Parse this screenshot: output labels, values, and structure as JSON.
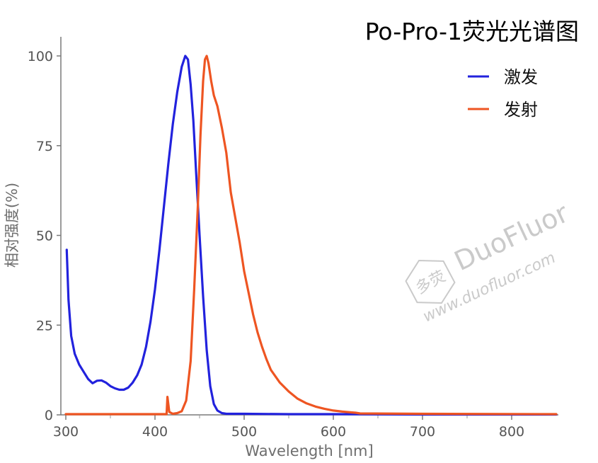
{
  "chart_data": {
    "type": "line",
    "title": "Po-Pro-1荧光光谱图",
    "xlabel": "Wavelength [nm]",
    "ylabel": "相对强度(%)",
    "xlim": [
      300,
      850
    ],
    "ylim": [
      0,
      100
    ],
    "xticks": [
      300,
      400,
      500,
      600,
      700,
      800
    ],
    "yticks": [
      0,
      25,
      50,
      75,
      100
    ],
    "legend_position": "top-right",
    "series": [
      {
        "name": "激发",
        "color": "#2222dd",
        "points": [
          [
            301,
            46
          ],
          [
            303,
            32
          ],
          [
            306,
            22
          ],
          [
            310,
            17
          ],
          [
            315,
            14
          ],
          [
            320,
            12
          ],
          [
            325,
            10
          ],
          [
            330,
            8.8
          ],
          [
            335,
            9.5
          ],
          [
            340,
            9.6
          ],
          [
            345,
            9.0
          ],
          [
            350,
            8.0
          ],
          [
            355,
            7.4
          ],
          [
            360,
            7.0
          ],
          [
            365,
            7.0
          ],
          [
            370,
            7.6
          ],
          [
            375,
            9.0
          ],
          [
            380,
            11
          ],
          [
            385,
            14
          ],
          [
            390,
            19
          ],
          [
            395,
            26
          ],
          [
            400,
            35
          ],
          [
            405,
            46
          ],
          [
            410,
            58
          ],
          [
            415,
            70
          ],
          [
            420,
            81
          ],
          [
            425,
            90
          ],
          [
            430,
            97
          ],
          [
            434,
            100
          ],
          [
            437,
            99
          ],
          [
            440,
            92
          ],
          [
            443,
            82
          ],
          [
            446,
            68
          ],
          [
            450,
            50
          ],
          [
            454,
            33
          ],
          [
            458,
            18
          ],
          [
            462,
            8
          ],
          [
            466,
            3
          ],
          [
            470,
            1.2
          ],
          [
            475,
            0.5
          ],
          [
            480,
            0.3
          ],
          [
            500,
            0.3
          ],
          [
            550,
            0.2
          ],
          [
            600,
            0.2
          ],
          [
            700,
            0.1
          ],
          [
            850,
            0.1
          ]
        ]
      },
      {
        "name": "发射",
        "color": "#ee5522",
        "points": [
          [
            300,
            0.2
          ],
          [
            350,
            0.2
          ],
          [
            400,
            0.2
          ],
          [
            413,
            0.2
          ],
          [
            414,
            5
          ],
          [
            416,
            0.8
          ],
          [
            420,
            0.3
          ],
          [
            425,
            0.5
          ],
          [
            430,
            1
          ],
          [
            435,
            4
          ],
          [
            440,
            15
          ],
          [
            444,
            35
          ],
          [
            448,
            58
          ],
          [
            451,
            78
          ],
          [
            454,
            93
          ],
          [
            456,
            99
          ],
          [
            458,
            100
          ],
          [
            460,
            98
          ],
          [
            463,
            93
          ],
          [
            466,
            89
          ],
          [
            470,
            86
          ],
          [
            475,
            80
          ],
          [
            480,
            73
          ],
          [
            485,
            62
          ],
          [
            490,
            55
          ],
          [
            495,
            48
          ],
          [
            500,
            40
          ],
          [
            505,
            34
          ],
          [
            510,
            28
          ],
          [
            515,
            23
          ],
          [
            520,
            19
          ],
          [
            525,
            15.5
          ],
          [
            530,
            12.5
          ],
          [
            540,
            9
          ],
          [
            550,
            6.5
          ],
          [
            560,
            4.5
          ],
          [
            570,
            3.2
          ],
          [
            580,
            2.3
          ],
          [
            590,
            1.7
          ],
          [
            600,
            1.2
          ],
          [
            610,
            0.9
          ],
          [
            620,
            0.7
          ],
          [
            625,
            0.6
          ],
          [
            630,
            0.4
          ],
          [
            700,
            0.3
          ],
          [
            850,
            0.2
          ]
        ]
      }
    ]
  },
  "watermark": {
    "cn": "多荧",
    "brand": "DuoFluor",
    "url": "www.duofluor.com",
    "color": "#c8c8c8"
  }
}
